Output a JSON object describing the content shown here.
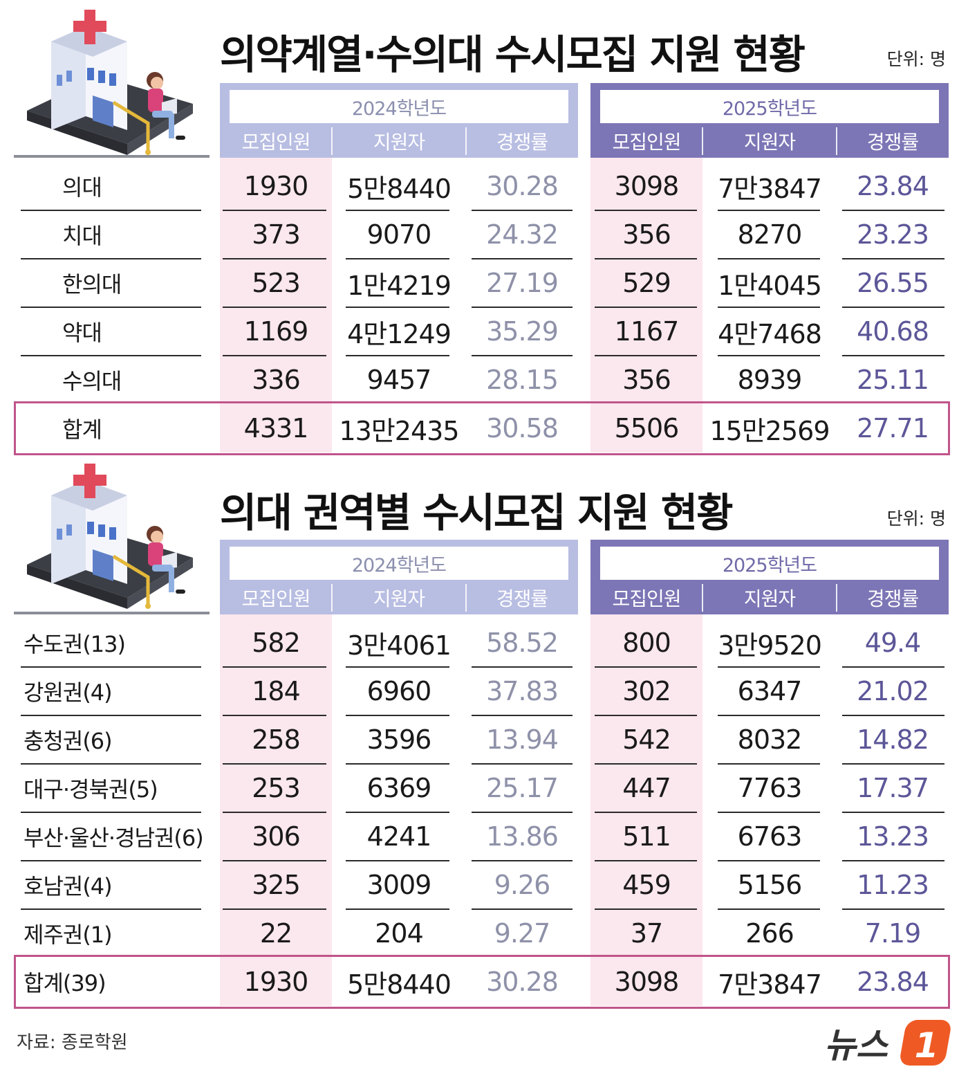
{
  "source": "자료: 종로학원",
  "logo_text": "뉴스",
  "logo_mark": "1",
  "colors": {
    "header_2024": "#b8bde2",
    "header_2025": "#7c76b6",
    "pink_column": "#fbe7ee",
    "total_border": "#c0548a",
    "rate_2024": "#8e91a8",
    "rate_2025": "#5c5698"
  },
  "chart_data": [
    {
      "type": "table",
      "title": "의약계열·수의대 수시모집 지원 현황",
      "unit": "단위: 명",
      "year_groups": [
        "2024학년도",
        "2025학년도"
      ],
      "columns": [
        "모집인원",
        "지원자",
        "경쟁률"
      ],
      "rows": [
        {
          "label": "의대",
          "y2024": [
            "1930",
            "5만8440",
            "30.28"
          ],
          "y2025": [
            "3098",
            "7만3847",
            "23.84"
          ]
        },
        {
          "label": "치대",
          "y2024": [
            "373",
            "9070",
            "24.32"
          ],
          "y2025": [
            "356",
            "8270",
            "23.23"
          ]
        },
        {
          "label": "한의대",
          "y2024": [
            "523",
            "1만4219",
            "27.19"
          ],
          "y2025": [
            "529",
            "1만4045",
            "26.55"
          ]
        },
        {
          "label": "약대",
          "y2024": [
            "1169",
            "4만1249",
            "35.29"
          ],
          "y2025": [
            "1167",
            "4만7468",
            "40.68"
          ]
        },
        {
          "label": "수의대",
          "y2024": [
            "336",
            "9457",
            "28.15"
          ],
          "y2025": [
            "356",
            "8939",
            "25.11"
          ]
        }
      ],
      "total": {
        "label": "합계",
        "y2024": [
          "4331",
          "13만2435",
          "30.58"
        ],
        "y2025": [
          "5506",
          "15만2569",
          "27.71"
        ]
      }
    },
    {
      "type": "table",
      "title": "의대 권역별 수시모집 지원 현황",
      "unit": "단위: 명",
      "year_groups": [
        "2024학년도",
        "2025학년도"
      ],
      "columns": [
        "모집인원",
        "지원자",
        "경쟁률"
      ],
      "rows": [
        {
          "label": "수도권(13)",
          "y2024": [
            "582",
            "3만4061",
            "58.52"
          ],
          "y2025": [
            "800",
            "3만9520",
            "49.4"
          ]
        },
        {
          "label": "강원권(4)",
          "y2024": [
            "184",
            "6960",
            "37.83"
          ],
          "y2025": [
            "302",
            "6347",
            "21.02"
          ]
        },
        {
          "label": "충청권(6)",
          "y2024": [
            "258",
            "3596",
            "13.94"
          ],
          "y2025": [
            "542",
            "8032",
            "14.82"
          ]
        },
        {
          "label": "대구·경북권(5)",
          "y2024": [
            "253",
            "6369",
            "25.17"
          ],
          "y2025": [
            "447",
            "7763",
            "17.37"
          ]
        },
        {
          "label": "부산·울산·경남권(6)",
          "y2024": [
            "306",
            "4241",
            "13.86"
          ],
          "y2025": [
            "511",
            "6763",
            "13.23"
          ]
        },
        {
          "label": "호남권(4)",
          "y2024": [
            "325",
            "3009",
            "9.26"
          ],
          "y2025": [
            "459",
            "5156",
            "11.23"
          ]
        },
        {
          "label": "제주권(1)",
          "y2024": [
            "22",
            "204",
            "9.27"
          ],
          "y2025": [
            "37",
            "266",
            "7.19"
          ]
        }
      ],
      "total": {
        "label": "합계(39)",
        "y2024": [
          "1930",
          "5만8440",
          "30.28"
        ],
        "y2025": [
          "3098",
          "7만3847",
          "23.84"
        ]
      }
    }
  ]
}
